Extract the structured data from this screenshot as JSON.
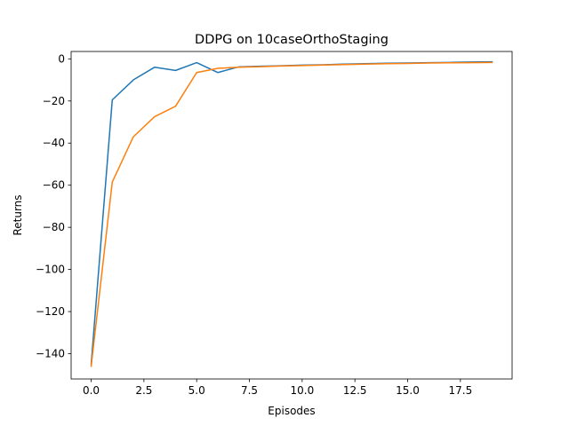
{
  "chart_data": {
    "type": "line",
    "title": "DDPG on 10caseOrthoStaging",
    "xlabel": "Episodes",
    "ylabel": "Returns",
    "xlim": [
      -0.95,
      19.95
    ],
    "ylim": [
      -152,
      3.5
    ],
    "x_ticks": [
      0,
      2.5,
      5,
      7.5,
      10,
      12.5,
      15,
      17.5
    ],
    "x_tick_labels": [
      "0.0",
      "2.5",
      "5.0",
      "7.5",
      "10.0",
      "12.5",
      "15.0",
      "17.5"
    ],
    "y_ticks": [
      0,
      -20,
      -40,
      -60,
      -80,
      -100,
      -120,
      -140
    ],
    "y_tick_labels": [
      "0",
      "−20",
      "−40",
      "−60",
      "−80",
      "−100",
      "−120",
      "−140"
    ],
    "grid": false,
    "x": [
      0,
      1,
      2,
      3,
      4,
      5,
      6,
      7,
      8,
      9,
      10,
      11,
      12,
      13,
      14,
      15,
      16,
      17,
      18,
      19
    ],
    "series": [
      {
        "color": "#1f77b4",
        "values": [
          -145,
          -19.5,
          -10,
          -4,
          -5.5,
          -1.8,
          -6.5,
          -3.8,
          -3.5,
          -3.3,
          -3,
          -2.8,
          -2.5,
          -2.3,
          -2.1,
          -2,
          -1.8,
          -1.7,
          -1.5,
          -1.4
        ]
      },
      {
        "color": "#ff7f0e",
        "values": [
          -146,
          -58.5,
          -37,
          -27.5,
          -22.5,
          -6.5,
          -4.5,
          -4,
          -3.7,
          -3.4,
          -3.2,
          -2.9,
          -2.7,
          -2.5,
          -2.3,
          -2.2,
          -2,
          -1.9,
          -1.8,
          -1.7
        ]
      }
    ]
  }
}
